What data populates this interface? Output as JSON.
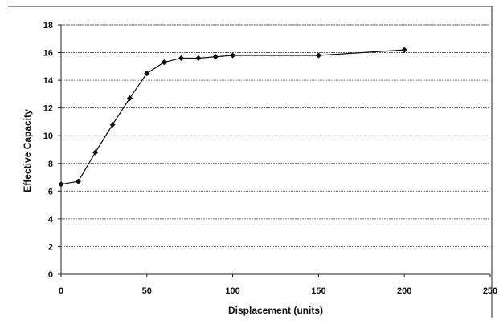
{
  "chart_data": {
    "type": "line",
    "title": "",
    "xlabel": "Displacement (units)",
    "ylabel": "Effective Capacity",
    "xlim": [
      0,
      250
    ],
    "ylim": [
      0,
      18
    ],
    "x_ticks": [
      0,
      50,
      100,
      150,
      200,
      250
    ],
    "y_ticks": [
      0,
      2,
      4,
      6,
      8,
      10,
      12,
      14,
      16,
      18
    ],
    "grid": true,
    "legend": "none",
    "series": [
      {
        "x": [
          0,
          10,
          20,
          30,
          40,
          50,
          60,
          70,
          80,
          90,
          100,
          150,
          200
        ],
        "y": [
          6.5,
          6.7,
          8.8,
          10.8,
          12.7,
          14.5,
          15.3,
          15.6,
          15.6,
          15.7,
          15.8,
          15.8,
          16.2
        ],
        "color": "#111111",
        "marker": "diamond"
      }
    ]
  }
}
